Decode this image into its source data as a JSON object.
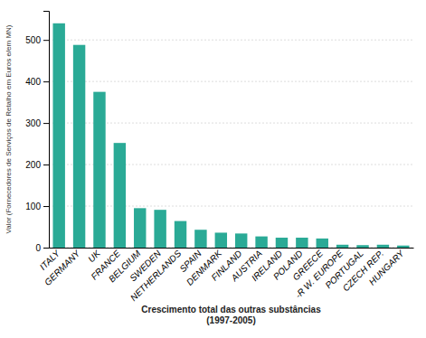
{
  "chart_data": {
    "type": "bar",
    "categories": [
      "ITALY",
      "GERMANY",
      "UK",
      "FRANCE",
      "BELGIUM",
      "SWEDEN",
      "NETHERLANDS",
      "SPAIN",
      "DENMARK",
      "FINLAND",
      "AUSTRIA",
      "IRELAND",
      "POLAND",
      "GREECE",
      "-R W. EUROPE",
      "PORTUGAL",
      "CZECH REP.",
      "HUNGARY"
    ],
    "values": [
      540,
      488,
      375,
      252,
      95,
      91,
      64,
      43,
      36,
      34,
      27,
      24,
      24,
      22,
      7,
      6,
      7,
      5
    ],
    "color": "#2aaa96",
    "xlabel": "Crescimento total das outras substâncias\n(1997-2005)",
    "ylabel": "Valor (Fornecedores de Serviços de Retalho em Euros e/em MN)",
    "ylim": [
      0,
      570
    ],
    "yticks": [
      0,
      100,
      200,
      300,
      400,
      500
    ],
    "grid": true
  }
}
